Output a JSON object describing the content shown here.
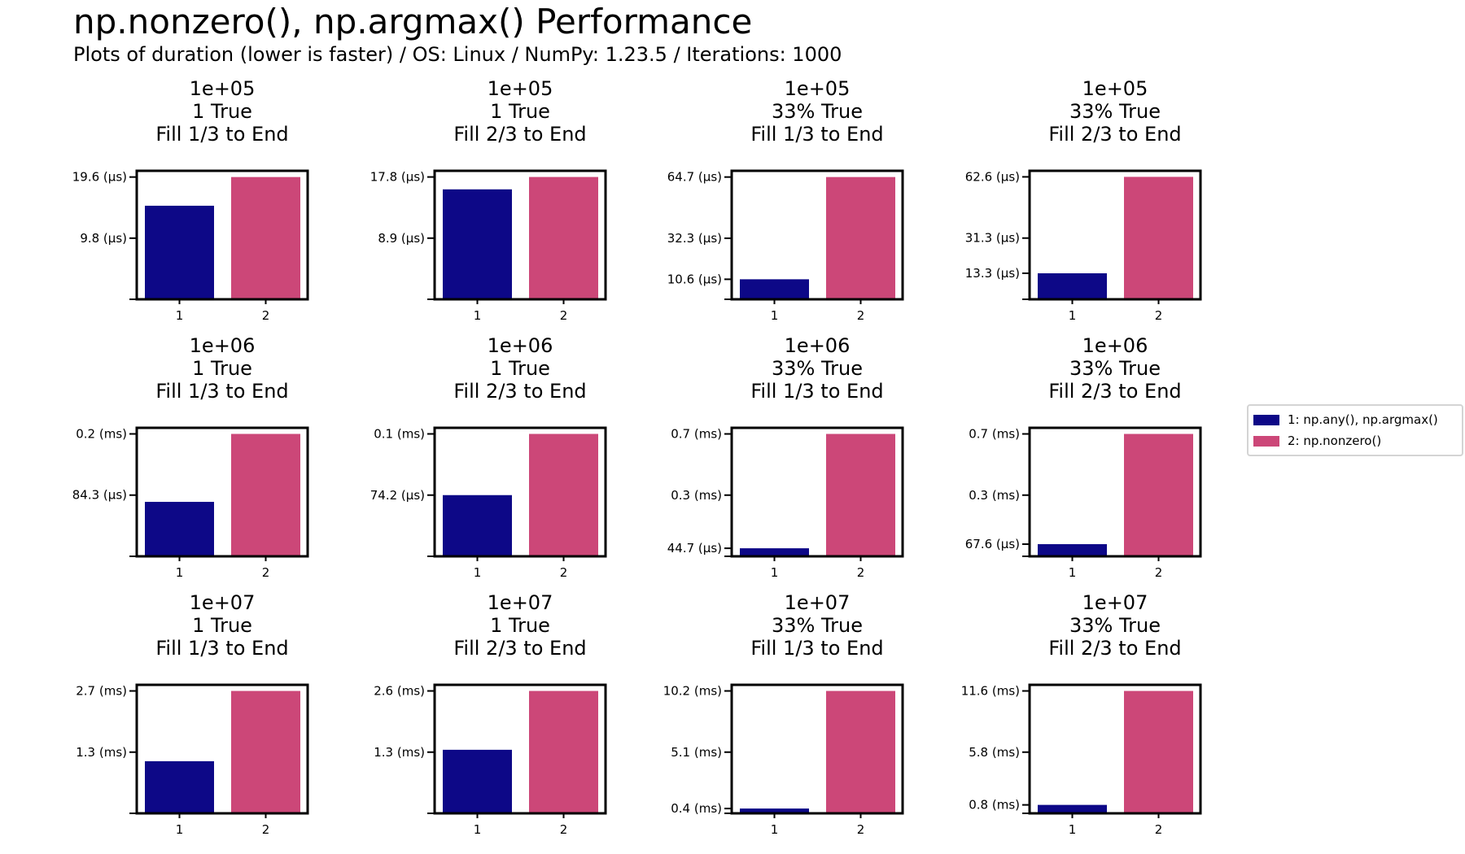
{
  "figure": {
    "title": "np.nonzero(), np.argmax() Performance",
    "subtitle": "Plots of duration (lower is faster) / OS: Linux / NumPy: 1.23.5 / Iterations: 1000"
  },
  "legend": {
    "placement": "right",
    "entries": [
      {
        "label": "1: np.any(), np.argmax()",
        "color": "#0d0887"
      },
      {
        "label": "2: np.nonzero()",
        "color": "#cc4778"
      }
    ]
  },
  "chart_data": [
    {
      "type": "bar",
      "title_lines": [
        "1e+05",
        "1 True",
        "Fill 1/3 to End"
      ],
      "categories": [
        "1",
        "2"
      ],
      "values_us": [
        15.0,
        19.6
      ],
      "ylim_us": [
        0,
        20.6
      ],
      "yticks": [
        {
          "value_us": 19.6,
          "label": "19.6 (µs)"
        },
        {
          "value_us": 9.8,
          "label": "9.8 (µs)"
        },
        {
          "value_us": 0,
          "label": ""
        }
      ]
    },
    {
      "type": "bar",
      "title_lines": [
        "1e+05",
        "1 True",
        "Fill 2/3 to End"
      ],
      "categories": [
        "1",
        "2"
      ],
      "values_us": [
        16.0,
        17.8
      ],
      "ylim_us": [
        0,
        18.7
      ],
      "yticks": [
        {
          "value_us": 17.8,
          "label": "17.8 (µs)"
        },
        {
          "value_us": 8.9,
          "label": "8.9 (µs)"
        },
        {
          "value_us": 0,
          "label": ""
        }
      ]
    },
    {
      "type": "bar",
      "title_lines": [
        "1e+05",
        "33% True",
        "Fill 1/3 to End"
      ],
      "categories": [
        "1",
        "2"
      ],
      "values_us": [
        10.6,
        64.7
      ],
      "ylim_us": [
        0,
        68.0
      ],
      "yticks": [
        {
          "value_us": 64.7,
          "label": "64.7 (µs)"
        },
        {
          "value_us": 32.3,
          "label": "32.3 (µs)"
        },
        {
          "value_us": 10.6,
          "label": "10.6 (µs)"
        },
        {
          "value_us": 0,
          "label": ""
        }
      ]
    },
    {
      "type": "bar",
      "title_lines": [
        "1e+05",
        "33% True",
        "Fill 2/3 to End"
      ],
      "categories": [
        "1",
        "2"
      ],
      "values_us": [
        13.3,
        62.6
      ],
      "ylim_us": [
        0,
        65.7
      ],
      "yticks": [
        {
          "value_us": 62.6,
          "label": "62.6 (µs)"
        },
        {
          "value_us": 31.3,
          "label": "31.3 (µs)"
        },
        {
          "value_us": 13.3,
          "label": "13.3 (µs)"
        },
        {
          "value_us": 0,
          "label": ""
        }
      ]
    },
    {
      "type": "bar",
      "title_lines": [
        "1e+06",
        "1 True",
        "Fill 1/3 to End"
      ],
      "categories": [
        "1",
        "2"
      ],
      "values_us": [
        75.0,
        168.6
      ],
      "ylim_us": [
        0,
        177.0
      ],
      "yticks": [
        {
          "value_us": 168.6,
          "label": "0.2 (ms)"
        },
        {
          "value_us": 84.3,
          "label": "84.3 (µs)"
        },
        {
          "value_us": 0,
          "label": ""
        }
      ]
    },
    {
      "type": "bar",
      "title_lines": [
        "1e+06",
        "1 True",
        "Fill 2/3 to End"
      ],
      "categories": [
        "1",
        "2"
      ],
      "values_us": [
        74.2,
        148.4
      ],
      "ylim_us": [
        0,
        155.8
      ],
      "yticks": [
        {
          "value_us": 148.4,
          "label": "0.1 (ms)"
        },
        {
          "value_us": 74.2,
          "label": "74.2 (µs)"
        },
        {
          "value_us": 0,
          "label": ""
        }
      ]
    },
    {
      "type": "bar",
      "title_lines": [
        "1e+06",
        "33% True",
        "Fill 1/3 to End"
      ],
      "categories": [
        "1",
        "2"
      ],
      "values_us": [
        44.7,
        680.0
      ],
      "ylim_us": [
        0,
        714.0
      ],
      "yticks": [
        {
          "value_us": 680.0,
          "label": "0.7 (ms)"
        },
        {
          "value_us": 340.0,
          "label": "0.3 (ms)"
        },
        {
          "value_us": 44.7,
          "label": "44.7 (µs)"
        },
        {
          "value_us": 0,
          "label": ""
        }
      ]
    },
    {
      "type": "bar",
      "title_lines": [
        "1e+06",
        "33% True",
        "Fill 2/3 to End"
      ],
      "categories": [
        "1",
        "2"
      ],
      "values_us": [
        67.6,
        680.0
      ],
      "ylim_us": [
        0,
        714.0
      ],
      "yticks": [
        {
          "value_us": 680.0,
          "label": "0.7 (ms)"
        },
        {
          "value_us": 340.0,
          "label": "0.3 (ms)"
        },
        {
          "value_us": 67.6,
          "label": "67.6 (µs)"
        },
        {
          "value_us": 0,
          "label": ""
        }
      ]
    },
    {
      "type": "bar",
      "title_lines": [
        "1e+07",
        "1 True",
        "Fill 1/3 to End"
      ],
      "categories": [
        "1",
        "2"
      ],
      "values_us": [
        1150,
        2700
      ],
      "ylim_us": [
        0,
        2835
      ],
      "yticks": [
        {
          "value_us": 2700,
          "label": "2.7 (ms)"
        },
        {
          "value_us": 1350,
          "label": "1.3 (ms)"
        },
        {
          "value_us": 0,
          "label": ""
        }
      ]
    },
    {
      "type": "bar",
      "title_lines": [
        "1e+07",
        "1 True",
        "Fill 2/3 to End"
      ],
      "categories": [
        "1",
        "2"
      ],
      "values_us": [
        1350,
        2600
      ],
      "ylim_us": [
        0,
        2730
      ],
      "yticks": [
        {
          "value_us": 2600,
          "label": "2.6 (ms)"
        },
        {
          "value_us": 1300,
          "label": "1.3 (ms)"
        },
        {
          "value_us": 0,
          "label": ""
        }
      ]
    },
    {
      "type": "bar",
      "title_lines": [
        "1e+07",
        "33% True",
        "Fill 1/3 to End"
      ],
      "categories": [
        "1",
        "2"
      ],
      "values_us": [
        400,
        10200
      ],
      "ylim_us": [
        0,
        10710
      ],
      "yticks": [
        {
          "value_us": 10200,
          "label": "10.2 (ms)"
        },
        {
          "value_us": 5100,
          "label": "5.1 (ms)"
        },
        {
          "value_us": 400,
          "label": "0.4 (ms)"
        },
        {
          "value_us": 0,
          "label": ""
        }
      ]
    },
    {
      "type": "bar",
      "title_lines": [
        "1e+07",
        "33% True",
        "Fill 2/3 to End"
      ],
      "categories": [
        "1",
        "2"
      ],
      "values_us": [
        800,
        11600
      ],
      "ylim_us": [
        0,
        12180
      ],
      "yticks": [
        {
          "value_us": 11600,
          "label": "11.6 (ms)"
        },
        {
          "value_us": 5800,
          "label": "5.8 (ms)"
        },
        {
          "value_us": 800,
          "label": "0.8 (ms)"
        },
        {
          "value_us": 0,
          "label": ""
        }
      ]
    }
  ]
}
